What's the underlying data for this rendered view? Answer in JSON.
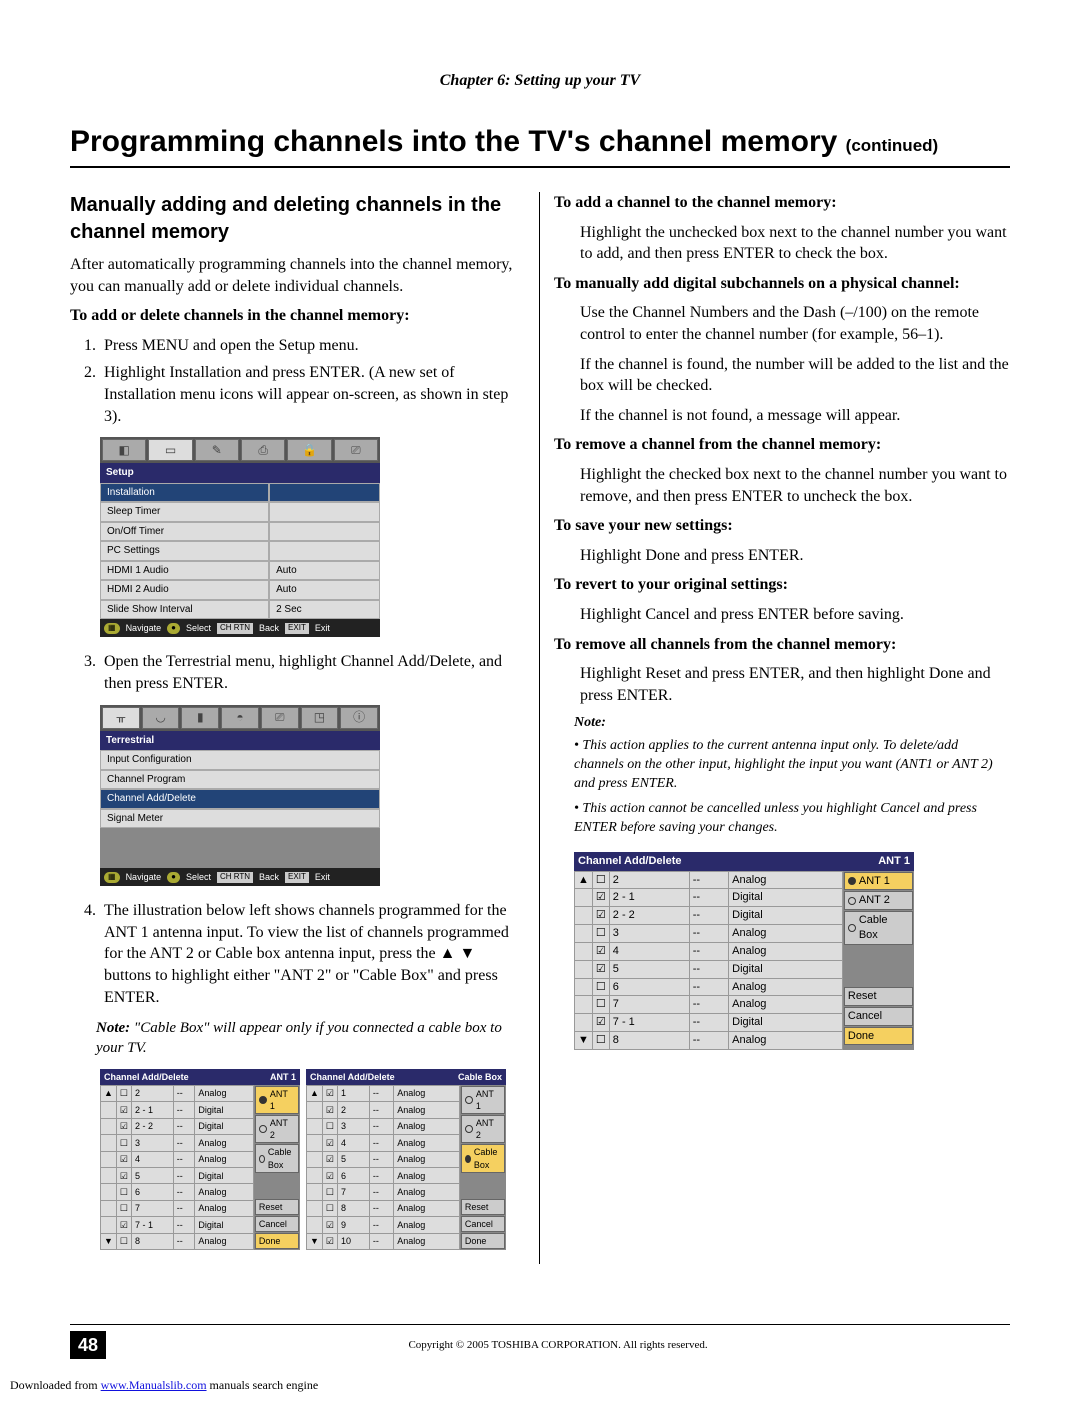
{
  "chapter": "Chapter 6: Setting up your TV",
  "title": "Programming channels into the TV's channel memory",
  "title_cont": "(continued)",
  "left": {
    "h2": "Manually adding and deleting channels in the channel memory",
    "intro": "After automatically programming channels into the channel memory, you can manually add or delete individual channels.",
    "sub1": "To add or delete channels in the channel memory:",
    "steps": [
      "Press MENU and open the Setup menu.",
      "Highlight Installation and press ENTER. (A new set of Installation menu icons will appear on-screen, as shown in step 3).",
      "Open the Terrestrial menu, highlight Channel Add/Delete, and then press ENTER.",
      "The illustration below left shows channels programmed for the ANT 1 antenna input. To view the list of channels programmed for the ANT 2 or Cable box antenna input, press the ▲ ▼ buttons to highlight either \"ANT 2\" or \"Cable Box\" and press ENTER."
    ],
    "note_label": "Note:",
    "note": "\"Cable Box\" will appear only if you connected a cable box to your TV."
  },
  "osd_setup": {
    "title": "Setup",
    "rows": [
      {
        "label": "Installation",
        "val": "",
        "hl": true
      },
      {
        "label": "Sleep Timer",
        "val": ""
      },
      {
        "label": "On/Off Timer",
        "val": ""
      },
      {
        "label": "PC Settings",
        "val": ""
      },
      {
        "label": "HDMI 1 Audio",
        "val": "Auto"
      },
      {
        "label": "HDMI 2 Audio",
        "val": "Auto"
      },
      {
        "label": "Slide Show Interval",
        "val": "2 Sec"
      }
    ],
    "foot": [
      "Navigate",
      "Select",
      "Back",
      "Exit"
    ]
  },
  "osd_terr": {
    "title": "Terrestrial",
    "rows": [
      {
        "label": "Input Configuration",
        "hl": false
      },
      {
        "label": "Channel Program",
        "hl": false
      },
      {
        "label": "Channel Add/Delete",
        "hl": true
      },
      {
        "label": "Signal Meter",
        "hl": false
      }
    ],
    "foot": [
      "Navigate",
      "Select",
      "Back",
      "Exit"
    ]
  },
  "ch_ant1": {
    "title": "Channel Add/Delete",
    "badge": "ANT 1",
    "rows": [
      {
        "a": "▲",
        "ck": "☐",
        "ch": "2",
        "n": "--",
        "t": "Analog"
      },
      {
        "a": "",
        "ck": "☑",
        "ch": "2 - 1",
        "n": "--",
        "t": "Digital"
      },
      {
        "a": "",
        "ck": "☑",
        "ch": "2 - 2",
        "n": "--",
        "t": "Digital"
      },
      {
        "a": "",
        "ck": "☐",
        "ch": "3",
        "n": "--",
        "t": "Analog"
      },
      {
        "a": "",
        "ck": "☑",
        "ch": "4",
        "n": "--",
        "t": "Analog"
      },
      {
        "a": "",
        "ck": "☑",
        "ch": "5",
        "n": "--",
        "t": "Digital"
      },
      {
        "a": "",
        "ck": "☐",
        "ch": "6",
        "n": "--",
        "t": "Analog"
      },
      {
        "a": "",
        "ck": "☐",
        "ch": "7",
        "n": "--",
        "t": "Analog"
      },
      {
        "a": "",
        "ck": "☑",
        "ch": "7 - 1",
        "n": "--",
        "t": "Digital"
      },
      {
        "a": "▼",
        "ck": "☐",
        "ch": "8",
        "n": "--",
        "t": "Analog"
      }
    ],
    "side": [
      {
        "t": "ANT 1",
        "on": true,
        "sel": true
      },
      {
        "t": "ANT 2",
        "on": false
      },
      {
        "t": "Cable Box",
        "on": false
      },
      {
        "gap": true
      },
      {
        "t": "Reset"
      },
      {
        "t": "Cancel"
      },
      {
        "t": "Done",
        "sel": true
      }
    ]
  },
  "ch_cable": {
    "title": "Channel Add/Delete",
    "badge": "Cable Box",
    "rows": [
      {
        "a": "▲",
        "ck": "☑",
        "ch": "1",
        "n": "--",
        "t": "Analog"
      },
      {
        "a": "",
        "ck": "☑",
        "ch": "2",
        "n": "--",
        "t": "Analog"
      },
      {
        "a": "",
        "ck": "☐",
        "ch": "3",
        "n": "--",
        "t": "Analog"
      },
      {
        "a": "",
        "ck": "☑",
        "ch": "4",
        "n": "--",
        "t": "Analog"
      },
      {
        "a": "",
        "ck": "☑",
        "ch": "5",
        "n": "--",
        "t": "Analog"
      },
      {
        "a": "",
        "ck": "☑",
        "ch": "6",
        "n": "--",
        "t": "Analog"
      },
      {
        "a": "",
        "ck": "☐",
        "ch": "7",
        "n": "--",
        "t": "Analog"
      },
      {
        "a": "",
        "ck": "☐",
        "ch": "8",
        "n": "--",
        "t": "Analog"
      },
      {
        "a": "",
        "ck": "☑",
        "ch": "9",
        "n": "--",
        "t": "Analog"
      },
      {
        "a": "▼",
        "ck": "☑",
        "ch": "10",
        "n": "--",
        "t": "Analog"
      }
    ],
    "side": [
      {
        "t": "ANT 1",
        "on": false
      },
      {
        "t": "ANT 2",
        "on": false
      },
      {
        "t": "Cable Box",
        "on": true,
        "sel": true
      },
      {
        "gap": true
      },
      {
        "t": "Reset"
      },
      {
        "t": "Cancel"
      },
      {
        "t": "Done"
      }
    ]
  },
  "right": {
    "items": [
      {
        "h": "To add a channel to the channel memory:",
        "p": [
          "Highlight the unchecked box next to the channel number you want to add, and then press ENTER to check the box."
        ]
      },
      {
        "h": "To manually add digital subchannels on a physical channel:",
        "p": [
          "Use the Channel Numbers and the Dash (–/100) on the remote control to enter the channel number (for example, 56–1).",
          "If the channel is found, the number will be added to the list and the box will be checked.",
          "If the channel is not found, a message will appear."
        ]
      },
      {
        "h": "To remove a channel from the channel memory:",
        "p": [
          "Highlight the checked box next to the channel number you want to remove, and then press ENTER to uncheck the box."
        ]
      },
      {
        "h": "To save your new settings:",
        "p": [
          "Highlight Done and press ENTER."
        ]
      },
      {
        "h": "To revert to your original settings:",
        "p": [
          "Highlight Cancel and press ENTER before saving."
        ]
      },
      {
        "h": "To remove all channels from the channel memory:",
        "p": [
          "Highlight Reset and press ENTER, and then highlight Done and press ENTER."
        ]
      }
    ],
    "note_label": "Note:",
    "notes": [
      "This action applies to the current antenna input only. To delete/add channels on the other input, highlight the input you want (ANT1 or ANT 2) and press ENTER.",
      "This action cannot be cancelled unless you highlight Cancel and press ENTER before saving your changes."
    ]
  },
  "ch_right": {
    "title": "Channel Add/Delete",
    "badge": "ANT 1",
    "rows": [
      {
        "a": "▲",
        "ck": "☐",
        "ch": "2",
        "n": "--",
        "t": "Analog"
      },
      {
        "a": "",
        "ck": "☑",
        "ch": "2 - 1",
        "n": "--",
        "t": "Digital"
      },
      {
        "a": "",
        "ck": "☑",
        "ch": "2 - 2",
        "n": "--",
        "t": "Digital"
      },
      {
        "a": "",
        "ck": "☐",
        "ch": "3",
        "n": "--",
        "t": "Analog"
      },
      {
        "a": "",
        "ck": "☑",
        "ch": "4",
        "n": "--",
        "t": "Analog"
      },
      {
        "a": "",
        "ck": "☑",
        "ch": "5",
        "n": "--",
        "t": "Digital"
      },
      {
        "a": "",
        "ck": "☐",
        "ch": "6",
        "n": "--",
        "t": "Analog"
      },
      {
        "a": "",
        "ck": "☐",
        "ch": "7",
        "n": "--",
        "t": "Analog"
      },
      {
        "a": "",
        "ck": "☑",
        "ch": "7 - 1",
        "n": "--",
        "t": "Digital"
      },
      {
        "a": "▼",
        "ck": "☐",
        "ch": "8",
        "n": "--",
        "t": "Analog"
      }
    ],
    "side": [
      {
        "t": "ANT 1",
        "on": true,
        "sel": true
      },
      {
        "t": "ANT 2",
        "on": false
      },
      {
        "t": "Cable Box",
        "on": false
      },
      {
        "gap": true
      },
      {
        "t": "Reset"
      },
      {
        "t": "Cancel"
      },
      {
        "t": "Done",
        "sel": true
      }
    ]
  },
  "footer": {
    "page": "48",
    "copy": "Copyright © 2005 TOSHIBA CORPORATION. All rights reserved.",
    "dl_pre": "Downloaded from ",
    "dl_link": "www.Manualslib.com",
    "dl_post": " manuals search engine"
  }
}
